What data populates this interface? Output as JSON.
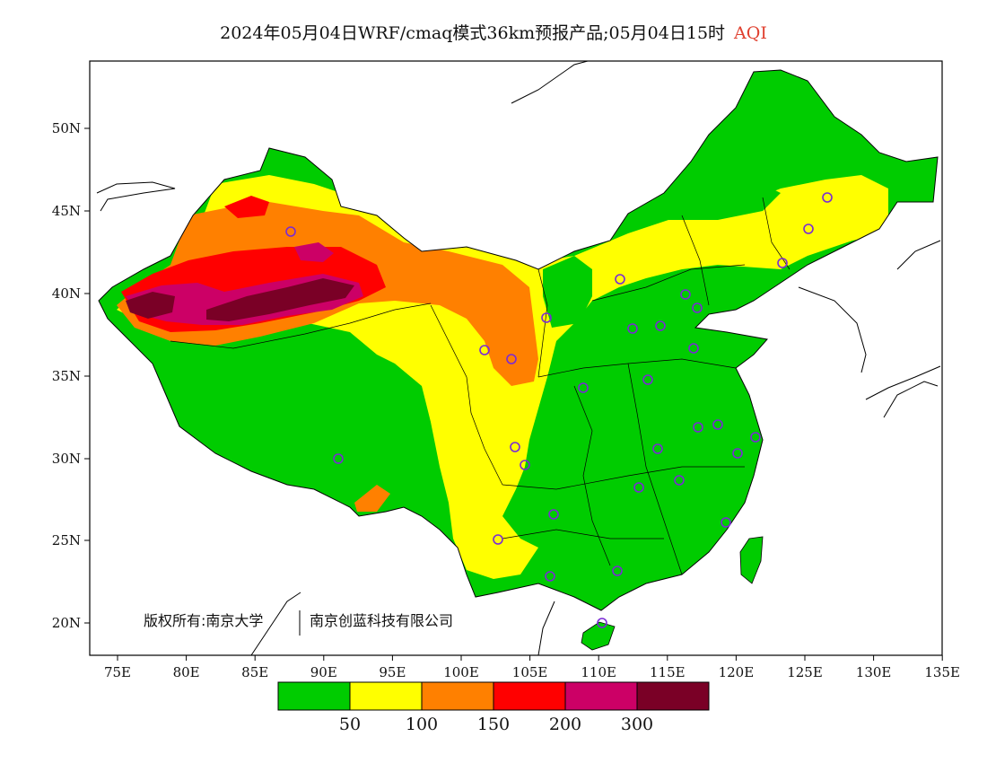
{
  "title": {
    "main": "2024年05月04日WRF/cmaq模式36km预报产品;05月04日15时",
    "tag": "AQI"
  },
  "axes": {
    "lat_labels": [
      "50N",
      "45N",
      "40N",
      "35N",
      "30N",
      "25N",
      "20N"
    ],
    "lon_labels": [
      "75E",
      "80E",
      "85E",
      "90E",
      "95E",
      "100E",
      "105E",
      "110E",
      "115E",
      "120E",
      "125E",
      "130E",
      "135E"
    ]
  },
  "copyright": {
    "part1": "版权所有:南京大学",
    "part2": "南京创蓝科技有限公司"
  },
  "legend": {
    "colors": [
      "#00cc00",
      "#ffff00",
      "#ff8000",
      "#ff0000",
      "#cc0066",
      "#7a0026"
    ],
    "labels": [
      "50",
      "100",
      "150",
      "200",
      "300"
    ]
  }
}
